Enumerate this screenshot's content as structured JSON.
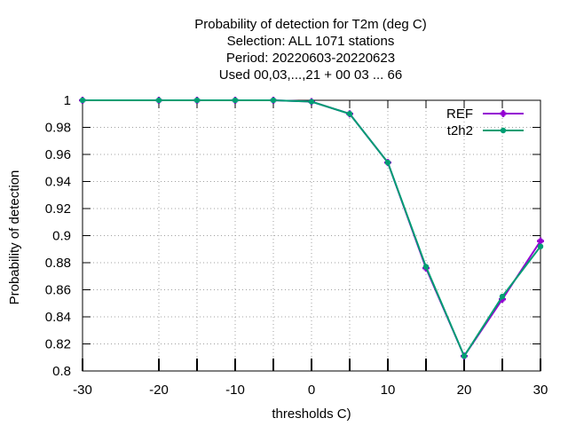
{
  "chart_data": {
    "type": "line",
    "title_lines": [
      "Probability of detection  for T2m (deg C)",
      "Selection: ALL   1071 stations",
      "Period: 20220603-20220623",
      "Used  00,03,...,21  + 00 03 ... 66"
    ],
    "xlabel": "thresholds C)",
    "ylabel": "Probability of detection",
    "xlim": [
      -30,
      30
    ],
    "ylim": [
      0.8,
      1.0
    ],
    "xticks": [
      -30,
      -20,
      -10,
      0,
      10,
      20,
      30
    ],
    "xtick_labels": [
      "-30",
      "-20",
      "-10",
      "0",
      "10",
      "20",
      "30"
    ],
    "yticks": [
      0.8,
      0.82,
      0.84,
      0.86,
      0.88,
      0.9,
      0.92,
      0.94,
      0.96,
      0.98,
      1.0
    ],
    "ytick_labels": [
      "0.8",
      "0.82",
      "0.84",
      "0.86",
      "0.88",
      "0.9",
      "0.92",
      "0.94",
      "0.96",
      "0.98",
      "1"
    ],
    "grid": true,
    "legend_position": "top-right",
    "x": [
      -30,
      -20,
      -15,
      -10,
      -5,
      0,
      5,
      10,
      15,
      20,
      25,
      30
    ],
    "series": [
      {
        "name": "REF",
        "color": "#9400d3",
        "marker": "plus",
        "values": [
          1.0,
          1.0,
          1.0,
          1.0,
          1.0,
          0.999,
          0.99,
          0.954,
          0.876,
          0.811,
          0.853,
          0.896
        ]
      },
      {
        "name": "t2h2",
        "color": "#009e73",
        "marker": "dot",
        "values": [
          1.0,
          1.0,
          1.0,
          1.0,
          1.0,
          0.999,
          0.99,
          0.954,
          0.877,
          0.811,
          0.855,
          0.892
        ]
      }
    ]
  }
}
